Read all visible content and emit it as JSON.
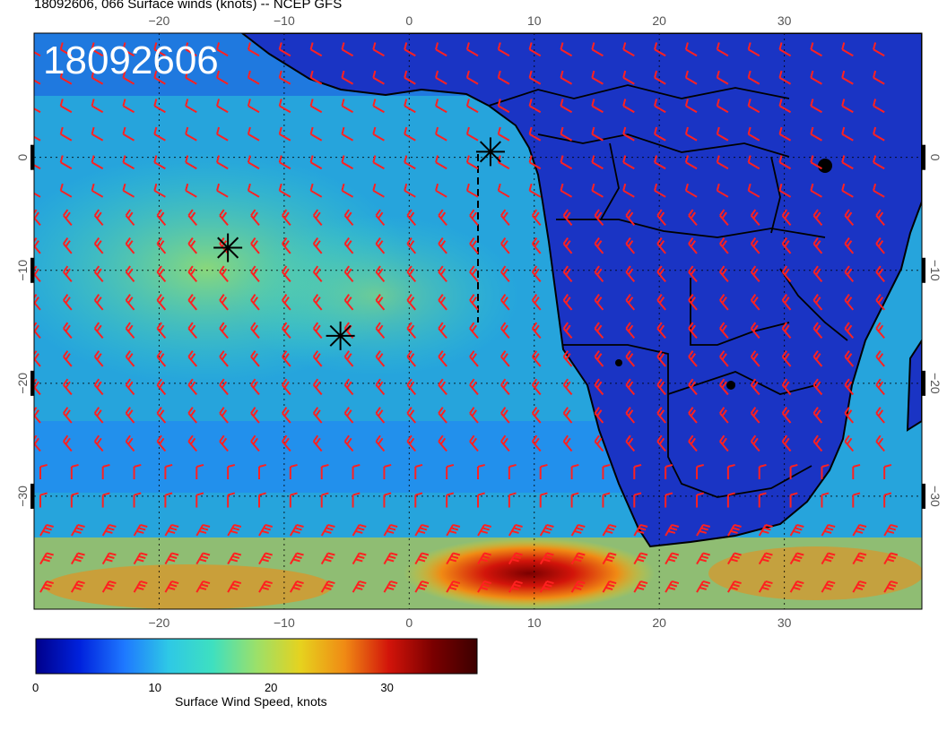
{
  "title": "18092606, 066 Surface winds (knots) -- NCEP GFS",
  "timestamp_overlay": "18092606",
  "map": {
    "lon_range": [
      -30,
      41
    ],
    "lat_range": [
      -40,
      11
    ],
    "lon_ticks": [
      {
        "value": -20,
        "label": "−20"
      },
      {
        "value": -10,
        "label": "−10"
      },
      {
        "value": 0,
        "label": "0"
      },
      {
        "value": 10,
        "label": "10"
      },
      {
        "value": 20,
        "label": "20"
      },
      {
        "value": 30,
        "label": "30"
      }
    ],
    "lat_ticks": [
      {
        "value": 0,
        "label": "0"
      },
      {
        "value": -10,
        "label": "−10"
      },
      {
        "value": -20,
        "label": "−20"
      },
      {
        "value": -30,
        "label": "−30"
      }
    ],
    "markers": [
      {
        "name": "asterisk-marker-1",
        "lon": -14.5,
        "lat": -8.0
      },
      {
        "name": "asterisk-marker-2",
        "lon": -5.5,
        "lat": -15.8
      },
      {
        "name": "asterisk-marker-3",
        "lon": 6.5,
        "lat": 0.5
      }
    ],
    "barb_color": "#ff2020",
    "land_color": "#1a30c0",
    "ocean_color": "#2aa8d8"
  },
  "colorbar": {
    "label": "Surface Wind Speed, knots",
    "min": 0,
    "max": 38,
    "ticks": [
      {
        "value": 0,
        "label": "0"
      },
      {
        "value": 10,
        "label": "10"
      },
      {
        "value": 20,
        "label": "20"
      },
      {
        "value": 30,
        "label": "30"
      }
    ],
    "colors": [
      "#00008b",
      "#0022dd",
      "#1e78ff",
      "#2ec8e6",
      "#3ee0c0",
      "#9be06a",
      "#e6d21e",
      "#f08a14",
      "#d2140a",
      "#7a0000",
      "#3c0000"
    ]
  }
}
